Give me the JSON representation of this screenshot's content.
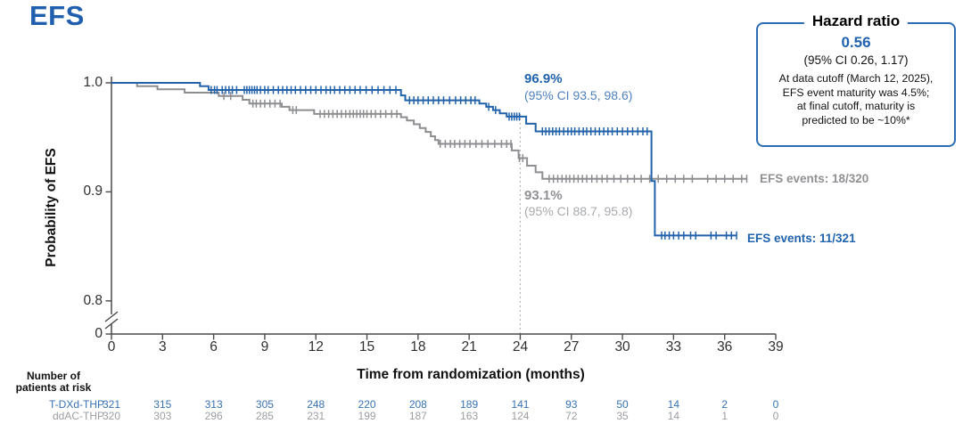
{
  "title": "EFS",
  "hazard_box": {
    "title": "Hazard ratio",
    "value": "0.56",
    "ci": "(95% CI 0.26, 1.17)",
    "note_lines": [
      "At data cutoff (March 12, 2025),",
      "EFS event maturity was 4.5%;",
      "at final cutoff, maturity is",
      "predicted to be ~10%*"
    ]
  },
  "annotations": {
    "tdxd_pct": "96.9%",
    "tdxd_ci": "(95% CI 93.5, 98.6)",
    "ddac_pct": "93.1%",
    "ddac_ci": "(95% CI 88.7, 95.8)",
    "tdxd_events": "EFS events: 11/321",
    "ddac_events": "EFS events: 18/320"
  },
  "axes": {
    "x_label": "Time from randomization (months)",
    "y_label": "Probability of EFS"
  },
  "at_risk_table": {
    "header_line1": "Number of",
    "header_line2": "patients at risk",
    "row1_name": "T-DXd-THP",
    "row2_name": "ddAC-THP"
  },
  "colors": {
    "blue": "#2262ab",
    "gray": "#8c8e91",
    "axis": "#4a4a4a",
    "reference_line": "#b9b9b9"
  },
  "chart_data": {
    "type": "line",
    "subtype": "kaplan-meier",
    "title": "EFS",
    "xlabel": "Time from randomization (months)",
    "ylabel": "Probability of EFS",
    "xlim": [
      0,
      39
    ],
    "x_ticks": [
      0,
      3,
      6,
      9,
      12,
      15,
      18,
      21,
      24,
      27,
      30,
      33,
      36,
      39
    ],
    "y_ticks": [
      {
        "label": "1.0",
        "p": 1.0
      },
      {
        "label": "0.9",
        "p": 0.9
      },
      {
        "label": "0.8",
        "p": 0.8
      },
      {
        "label": "0",
        "p": 0
      }
    ],
    "axis_break_between": [
      0,
      0.8
    ],
    "reference_line_x": 24,
    "grid": false,
    "legend_position": "none",
    "series": [
      {
        "name": "ddAC-THP",
        "color": "#8c8e91",
        "events": "18/320",
        "landmark_24mo_pct": 93.1,
        "landmark_24mo_ci": [
          88.7,
          95.8
        ],
        "end_month": 37.3,
        "steps": [
          [
            0,
            1.0
          ],
          [
            1.5,
            0.997
          ],
          [
            2.7,
            0.994
          ],
          [
            4.3,
            0.991
          ],
          [
            6.3,
            0.988
          ],
          [
            7.7,
            0.9845
          ],
          [
            8.1,
            0.981
          ],
          [
            10.0,
            0.978
          ],
          [
            10.45,
            0.975
          ],
          [
            11.9,
            0.9715
          ],
          [
            17.0,
            0.9685
          ],
          [
            17.35,
            0.9655
          ],
          [
            17.75,
            0.962
          ],
          [
            18.1,
            0.9585
          ],
          [
            18.45,
            0.955
          ],
          [
            18.75,
            0.951
          ],
          [
            19.0,
            0.9475
          ],
          [
            19.2,
            0.944
          ],
          [
            23.5,
            0.938
          ],
          [
            23.9,
            0.931
          ],
          [
            24.4,
            0.924
          ],
          [
            24.9,
            0.918
          ],
          [
            25.3,
            0.912
          ]
        ],
        "censor_months": [
          6.6,
          7.0,
          8.3,
          8.5,
          8.75,
          9.0,
          9.3,
          9.6,
          9.9,
          10.65,
          10.85,
          12.25,
          12.5,
          12.75,
          13.0,
          13.25,
          13.5,
          13.75,
          14.0,
          14.2,
          14.4,
          14.6,
          14.8,
          15.0,
          15.25,
          15.5,
          15.8,
          16.1,
          16.45,
          16.75,
          19.3,
          19.6,
          19.9,
          20.15,
          20.45,
          20.75,
          21.05,
          21.4,
          21.75,
          22.1,
          22.5,
          22.9,
          23.2,
          23.45,
          23.95,
          24.15,
          25.7,
          25.95,
          26.2,
          26.45,
          26.7,
          26.9,
          27.15,
          27.4,
          27.65,
          27.9,
          28.2,
          28.5,
          28.8,
          29.1,
          29.5,
          29.9,
          30.3,
          30.7,
          31.1,
          31.6,
          32.1,
          32.6,
          33.1,
          33.6,
          34.1,
          35.0,
          35.5,
          36.0,
          36.5,
          37.0,
          37.3
        ]
      },
      {
        "name": "T-DXd-THP",
        "color": "#2262ab",
        "events": "11/321",
        "landmark_24mo_pct": 96.9,
        "landmark_24mo_ci": [
          93.5,
          98.6
        ],
        "end_month": 36.7,
        "steps": [
          [
            0,
            1.0
          ],
          [
            5.2,
            0.997
          ],
          [
            5.7,
            0.9935
          ],
          [
            17.0,
            0.9885
          ],
          [
            17.25,
            0.984
          ],
          [
            21.6,
            0.981
          ],
          [
            22.0,
            0.978
          ],
          [
            22.4,
            0.975
          ],
          [
            22.8,
            0.972
          ],
          [
            23.2,
            0.969
          ],
          [
            24.35,
            0.9625
          ],
          [
            24.9,
            0.9555
          ],
          [
            31.7,
            0.91
          ],
          [
            31.9,
            0.86
          ]
        ],
        "censor_months": [
          5.85,
          6.05,
          6.2,
          6.5,
          6.7,
          6.9,
          7.1,
          7.35,
          7.8,
          7.95,
          8.1,
          8.25,
          8.4,
          8.55,
          8.75,
          9.0,
          9.2,
          9.5,
          9.8,
          10.05,
          10.3,
          10.55,
          10.8,
          11.1,
          11.4,
          11.7,
          12.0,
          12.3,
          12.6,
          12.85,
          13.1,
          13.4,
          13.7,
          14.0,
          14.3,
          14.6,
          14.95,
          15.3,
          15.65,
          16.0,
          16.35,
          16.7,
          17.5,
          17.75,
          18.0,
          18.3,
          18.6,
          18.9,
          19.2,
          19.5,
          19.85,
          20.2,
          20.5,
          20.8,
          21.1,
          21.35,
          22.15,
          22.55,
          23.35,
          23.5,
          23.65,
          23.8,
          23.95,
          25.3,
          25.5,
          25.7,
          25.9,
          26.1,
          26.3,
          26.55,
          26.8,
          27.0,
          27.2,
          27.45,
          27.7,
          27.9,
          28.15,
          28.4,
          28.65,
          28.9,
          29.15,
          29.4,
          29.7,
          30.0,
          30.3,
          30.6,
          30.9,
          31.2,
          31.45,
          32.3,
          32.5,
          32.75,
          33.0,
          33.3,
          33.6,
          34.0,
          34.3,
          35.2,
          35.5,
          36.1,
          36.4,
          36.7
        ]
      }
    ],
    "at_risk": {
      "months": [
        0,
        3,
        6,
        9,
        12,
        15,
        18,
        21,
        24,
        27,
        30,
        33,
        36,
        39
      ],
      "rows": [
        {
          "name": "T-DXd-THP",
          "counts": [
            321,
            315,
            313,
            305,
            248,
            220,
            208,
            189,
            141,
            93,
            50,
            14,
            2,
            0
          ]
        },
        {
          "name": "ddAC-THP",
          "counts": [
            320,
            303,
            296,
            285,
            231,
            199,
            187,
            163,
            124,
            72,
            35,
            14,
            1,
            0
          ]
        }
      ]
    }
  }
}
